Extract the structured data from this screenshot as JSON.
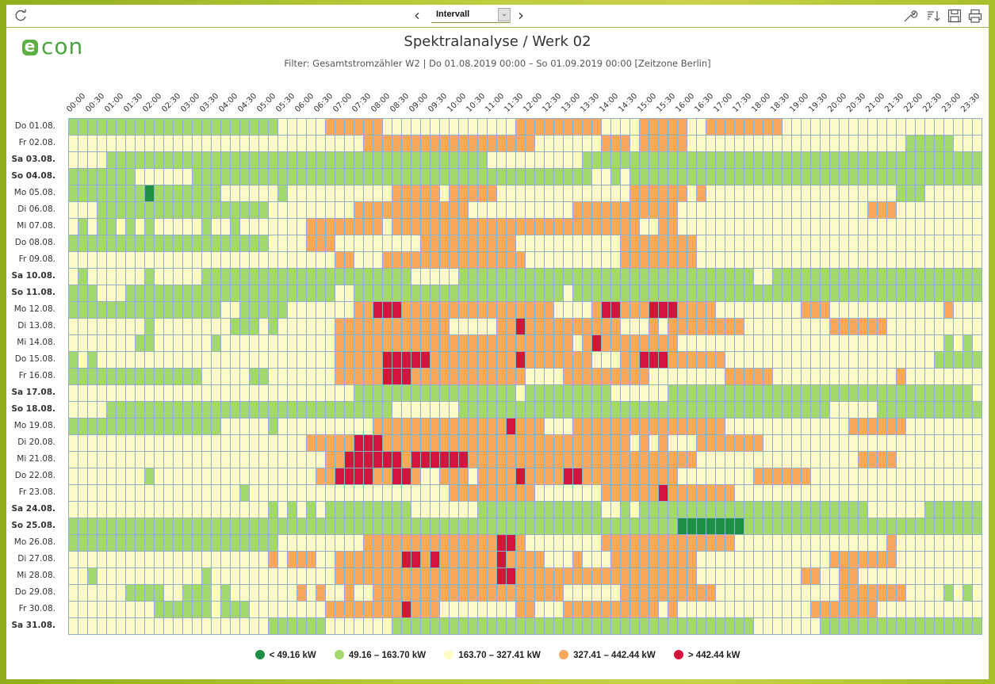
{
  "toolbar": {
    "interval_select": "Intervall",
    "icons": [
      "refresh-icon",
      "chevron-left-icon",
      "chevron-down-icon",
      "chevron-right-icon",
      "wrench-icon",
      "sort-icon",
      "save-icon",
      "print-icon"
    ]
  },
  "logo": {
    "e": "e",
    "rest": "con"
  },
  "header": {
    "title": "Spektralanalyse / Werk 02",
    "subtitle": "Filter: Gesamtstromzähler W2 | Do 01.08.2019 00:00 – So 01.09.2019 00:00 [Zeitzone Berlin]"
  },
  "chart_data": {
    "type": "heatmap",
    "title": "Spektralanalyse / Werk 02",
    "x_tick_labels": [
      "00:00",
      "00:30",
      "01:00",
      "01:30",
      "02:00",
      "02:30",
      "03:00",
      "03:30",
      "04:00",
      "04:30",
      "05:00",
      "05:30",
      "06:00",
      "06:30",
      "07:00",
      "07:30",
      "08:00",
      "08:30",
      "09:00",
      "09:30",
      "10:00",
      "10:30",
      "11:00",
      "11:30",
      "12:00",
      "12:30",
      "13:00",
      "13:30",
      "14:00",
      "14:30",
      "15:00",
      "15:30",
      "16:00",
      "16:30",
      "17:00",
      "17:30",
      "18:00",
      "18:30",
      "19:00",
      "19:30",
      "20:00",
      "20:30",
      "21:00",
      "21:30",
      "22:00",
      "22:30",
      "23:00",
      "23:30"
    ],
    "columns_per_tick": 2,
    "y_labels": [
      {
        "label": "Do 01.08.",
        "weekend": false
      },
      {
        "label": "Fr 02.08.",
        "weekend": false
      },
      {
        "label": "Sa 03.08.",
        "weekend": true
      },
      {
        "label": "So 04.08.",
        "weekend": true
      },
      {
        "label": "Mo 05.08.",
        "weekend": false
      },
      {
        "label": "Di 06.08.",
        "weekend": false
      },
      {
        "label": "Mi 07.08.",
        "weekend": false
      },
      {
        "label": "Do 08.08.",
        "weekend": false
      },
      {
        "label": "Fr 09.08.",
        "weekend": false
      },
      {
        "label": "Sa 10.08.",
        "weekend": true
      },
      {
        "label": "So 11.08.",
        "weekend": true
      },
      {
        "label": "Mo 12.08.",
        "weekend": false
      },
      {
        "label": "Di 13.08.",
        "weekend": false
      },
      {
        "label": "Mi 14.08.",
        "weekend": false
      },
      {
        "label": "Do 15.08.",
        "weekend": false
      },
      {
        "label": "Fr 16.08.",
        "weekend": false
      },
      {
        "label": "Sa 17.08.",
        "weekend": true
      },
      {
        "label": "So 18.08.",
        "weekend": true
      },
      {
        "label": "Mo 19.08.",
        "weekend": false
      },
      {
        "label": "Di 20.08.",
        "weekend": false
      },
      {
        "label": "Mi 21.08.",
        "weekend": false
      },
      {
        "label": "Do 22.08.",
        "weekend": false
      },
      {
        "label": "Fr 23.08.",
        "weekend": false
      },
      {
        "label": "Sa 24.08.",
        "weekend": true
      },
      {
        "label": "So 25.08.",
        "weekend": true
      },
      {
        "label": "Mo 26.08.",
        "weekend": false
      },
      {
        "label": "Di 27.08.",
        "weekend": false
      },
      {
        "label": "Mi 28.08.",
        "weekend": false
      },
      {
        "label": "Do 29.08.",
        "weekend": false
      },
      {
        "label": "Fr 30.08.",
        "weekend": false
      },
      {
        "label": "Sa 31.08.",
        "weekend": true
      }
    ],
    "legend_position": "bottom",
    "bins": [
      {
        "label": "< 49.16 kW",
        "color": "#1f8f45"
      },
      {
        "label": "49.16 – 163.70 kW",
        "color": "#a3d86f"
      },
      {
        "label": "163.70 – 327.41 kW",
        "color": "#fefcc6"
      },
      {
        "label": "327.41 – 442.44 kW",
        "color": "#f9a85c"
      },
      {
        "label": "> 442.44 kW",
        "color": "#d4143f"
      }
    ],
    "rows": [
      "111111111111111111111122222333333222222222222223333333332222333332233333333222222222222222222222",
      "222222222222222222222222222222233333333333333333322222223332333332222222222222222222222211111222",
      "222211111111111111111111111111111111111111112222222222111111111111111111111111111111111111111111",
      "111111122222211111111111111111111111111111111111111111122121111111111111111111111111111111111111",
      "111111110111111122222212222222222233333233333222222222222223333332322222222222222222222111222222",
      "222111111111111111111222222222333333333333222222222223333333333322222222222222222222333222222222",
      "212112121222221221222222233333333233333333333333333333333333223322222222222222222222222222222222",
      "111111111111111111111222233322222222233333333332222222222233333333222222222222222222222222222222",
      "222222222222222222222222222233222333333333333333222222222233333333222222222222222222222222222222",
      "212222221222221111111111111111111111222221111111111111111111111111111111221111111111111111111111",
      "111222111111111111111111111122111111111111111111111121111111111111111111111111111111111111111111",
      "111111111111111122111112222222334443333333333333333222234433344433332222222223332222222222223222",
      "222222221222222221112122222233333333333322222334333333333322232333333332222222223333332222222222",
      "222222211222222122222222222233333333333333333333333332343333333322222222222222222222222222221212",
      "121222222222222222222222222233333444443333333334333333322233444333333222222222222222222222211111",
      "111111111111112222211222222233333444333333333333222233333333322222222333332222222222222322222222",
      "222222222222222222222222222222111111111111111112111111111222222111111111111111111111111111111112",
      "222211111111111111111111111111111122222221111111111111111111111111111111111111112222211111111111",
      "111111111111111122222122222222223333333333333343332223333333333333333222222222222233333322222222",
      "222222222222222222222222233333444333333333333333333333333332323222333333322222222222222222222222",
      "222222222222222222222222222334444443444444333333333333333333333333222222222222222223333222222222",
      "222222221222222222222222223344443344322333233334333344333333333322222222333333222222222222222222",
      "222222222222222222122222222222222222222233333333322222223333334333333322222222222222222222222222",
      "222222222222222222222121212111111111222222211111111111112212111111111111111111111111222222111111",
      "111111111111111111111111111111111111111111111111111111111111111100000001111111111111111111111111",
      "111111111111111111111122222222233333333333333443222222223333333333333322222222222222223222222222",
      "222222222222222222222323332233333334434333333433332223222333333333222222222222223333333222222222",
      "221222222222221222222222222233333333333333333443333333333333333333222222222223322332222222222222",
      "222222111122111212222222323223223333333333333333333322222233333333332222222222222333333322221212",
      "222222222111111211122222222333333334333222222223322233333333332322222222222222333333322222222222",
      "222222222222222222222111111222222211111111111111111111111111111111111111222222211111111111111111"
    ]
  },
  "legend": {
    "items": [
      {
        "label": "< 49.16 kW",
        "color": "#1f8f45"
      },
      {
        "label": "49.16 – 163.70 kW",
        "color": "#a3d86f"
      },
      {
        "label": "163.70 – 327.41 kW",
        "color": "#fefcc6"
      },
      {
        "label": "327.41 – 442.44 kW",
        "color": "#f9a85c"
      },
      {
        "label": "> 442.44 kW",
        "color": "#d4143f"
      }
    ]
  }
}
